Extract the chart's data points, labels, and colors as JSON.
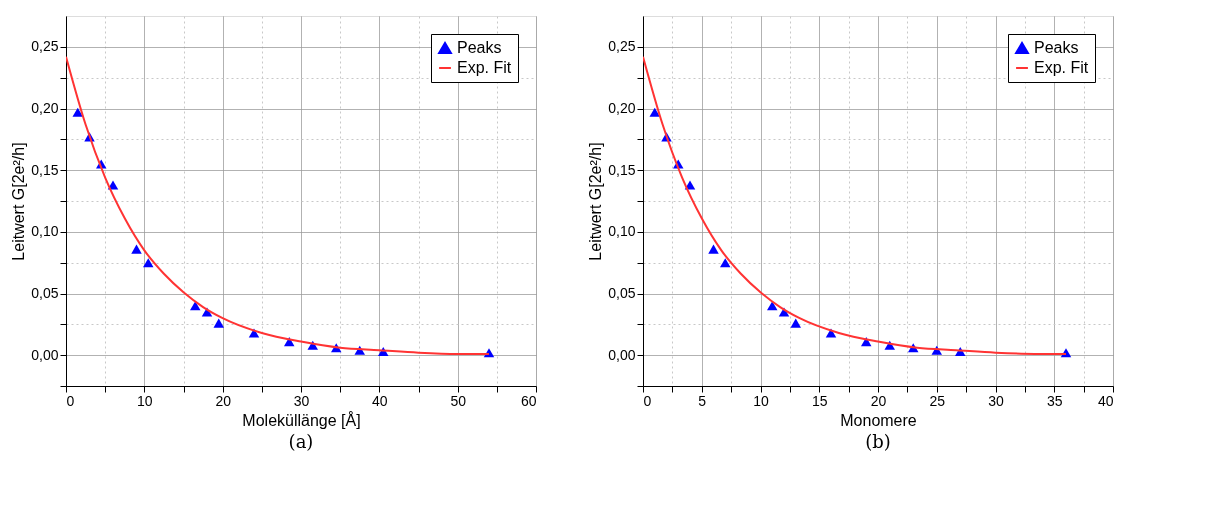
{
  "chart_data": [
    {
      "type": "scatter",
      "xlabel": "Moleküllänge  [Å]",
      "ylabel": "Leitwert G[2e²/h]",
      "annotations": [
        "(a)"
      ],
      "grid": true,
      "legend": "top right",
      "xlim": [
        0,
        60
      ],
      "xticks": [
        0,
        {
          "value": 5,
          "label": null
        },
        10,
        {
          "value": 15,
          "label": null
        },
        20,
        {
          "value": 25,
          "label": null
        },
        30,
        {
          "value": 35,
          "label": null
        },
        40,
        {
          "value": 45,
          "label": null
        },
        50,
        {
          "value": 55,
          "label": null
        },
        60
      ],
      "ylim": [
        -0.025,
        0.275
      ],
      "yticks": [
        {
          "value": -0.025,
          "label": null
        },
        {
          "value": 0,
          "label": "0,00"
        },
        {
          "value": 0.025,
          "label": null
        },
        {
          "value": 0.05,
          "label": "0,05"
        },
        {
          "value": 0.075,
          "label": null
        },
        {
          "value": 0.1,
          "label": "0,10"
        },
        {
          "value": 0.125,
          "label": null
        },
        {
          "value": 0.15,
          "label": "0,15"
        },
        {
          "value": 0.175,
          "label": null
        },
        {
          "value": 0.2,
          "label": "0,20"
        },
        {
          "value": 0.225,
          "label": null
        },
        {
          "value": 0.25,
          "label": "0,25"
        }
      ],
      "series": [
        {
          "name": "Peaks",
          "color": "#0000ff",
          "marker": "triangle",
          "x": [
            1.5,
            3,
            4.5,
            6,
            9,
            10.5,
            16.5,
            18,
            19.5,
            24,
            28.5,
            31.5,
            34.5,
            37.5,
            40.5,
            54
          ],
          "values": [
            0.197,
            0.177,
            0.155,
            0.138,
            0.086,
            0.075,
            0.04,
            0.035,
            0.026,
            0.018,
            0.011,
            0.008,
            0.006,
            0.004,
            0.003,
            0.002
          ]
        },
        {
          "name": "Exp. Fit",
          "type": "line",
          "line_style": "solid",
          "color": "#ff3333",
          "x": [
            0,
            2.5,
            5,
            7.5,
            10,
            12.5,
            15,
            17.5,
            20,
            25,
            30,
            35,
            40,
            45,
            50,
            54
          ],
          "values": [
            0.242,
            0.187,
            0.144,
            0.111,
            0.085,
            0.066,
            0.051,
            0.039,
            0.03,
            0.018,
            0.011,
            0.006,
            0.004,
            0.002,
            0.001,
            0.001
          ]
        }
      ]
    },
    {
      "type": "scatter",
      "xlabel": "Monomere",
      "ylabel": "Leitwert G[2e²/h]",
      "annotations": [
        "(b)"
      ],
      "grid": true,
      "legend": "top right",
      "xlim": [
        0,
        40
      ],
      "xticks": [
        0,
        {
          "value": 2.5,
          "label": null
        },
        5,
        {
          "value": 7.5,
          "label": null
        },
        10,
        {
          "value": 12.5,
          "label": null
        },
        15,
        {
          "value": 17.5,
          "label": null
        },
        20,
        {
          "value": 22.5,
          "label": null
        },
        25,
        {
          "value": 27.5,
          "label": null
        },
        30,
        {
          "value": 32.5,
          "label": null
        },
        35,
        {
          "value": 37.5,
          "label": null
        },
        40
      ],
      "ylim": [
        -0.025,
        0.275
      ],
      "yticks": [
        {
          "value": -0.025,
          "label": null
        },
        {
          "value": 0,
          "label": "0,00"
        },
        {
          "value": 0.025,
          "label": null
        },
        {
          "value": 0.05,
          "label": "0,05"
        },
        {
          "value": 0.075,
          "label": null
        },
        {
          "value": 0.1,
          "label": "0,10"
        },
        {
          "value": 0.125,
          "label": null
        },
        {
          "value": 0.15,
          "label": "0,15"
        },
        {
          "value": 0.175,
          "label": null
        },
        {
          "value": 0.2,
          "label": "0,20"
        },
        {
          "value": 0.225,
          "label": null
        },
        {
          "value": 0.25,
          "label": "0,25"
        }
      ],
      "series": [
        {
          "name": "Peaks",
          "color": "#0000ff",
          "marker": "triangle",
          "x": [
            1,
            2,
            3,
            4,
            6,
            7,
            11,
            12,
            13,
            16,
            19,
            21,
            23,
            25,
            27,
            36
          ],
          "values": [
            0.197,
            0.177,
            0.155,
            0.138,
            0.086,
            0.075,
            0.04,
            0.035,
            0.026,
            0.018,
            0.011,
            0.008,
            0.006,
            0.004,
            0.003,
            0.002
          ]
        },
        {
          "name": "Exp. Fit",
          "type": "line",
          "line_style": "solid",
          "color": "#ff3333",
          "x": [
            0,
            1.67,
            3.33,
            5,
            6.67,
            8.33,
            10,
            11.67,
            13.33,
            16.67,
            20,
            23.33,
            26.67,
            30,
            33.33,
            36
          ],
          "values": [
            0.242,
            0.187,
            0.144,
            0.111,
            0.085,
            0.066,
            0.051,
            0.039,
            0.03,
            0.018,
            0.011,
            0.006,
            0.004,
            0.002,
            0.001,
            0.001
          ]
        }
      ]
    }
  ]
}
